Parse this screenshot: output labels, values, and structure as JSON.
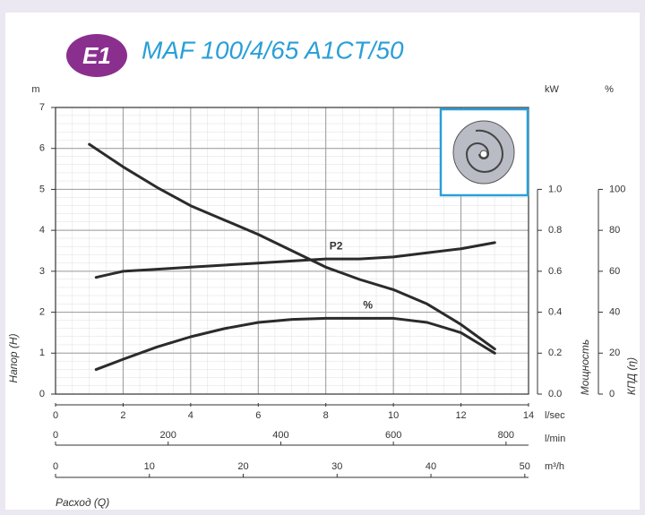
{
  "chart_data": {
    "type": "line",
    "badge": "E1",
    "title": "MAF 100/4/65 A1CT/50",
    "y_unit": "m",
    "y_label": "Напор (H)",
    "ylim": [
      0,
      7
    ],
    "yticks": [
      0,
      1,
      2,
      3,
      4,
      5,
      6,
      7
    ],
    "y2_unit": "kW",
    "y2_label": "Мощность",
    "y2lim": [
      0,
      1.4
    ],
    "y2ticks": [
      {
        "value": 0,
        "label": "0.0"
      },
      {
        "value": 0.2,
        "label": "0.2"
      },
      {
        "value": 0.4,
        "label": "0.4"
      },
      {
        "value": 0.6,
        "label": "0.6"
      },
      {
        "value": 0.8,
        "label": "0.8"
      },
      {
        "value": 1,
        "label": "1.0"
      }
    ],
    "y3_unit": "%",
    "y3_label": "КПД (η)",
    "y3lim": [
      0,
      140
    ],
    "y3ticks": [
      0,
      20,
      40,
      60,
      80,
      100
    ],
    "x_label": "Расход (Q)",
    "x_unit": "l/sec",
    "xlim": [
      0,
      14
    ],
    "xticks": [
      0,
      2,
      4,
      6,
      8,
      10,
      12,
      14
    ],
    "x2_unit": "l/min",
    "x2lim": [
      0,
      840
    ],
    "x2ticks": [
      0,
      200,
      400,
      600,
      800
    ],
    "x3_unit": "m³/h",
    "x3lim": [
      0,
      50.4
    ],
    "x3ticks": [
      0,
      10,
      20,
      30,
      40,
      50
    ],
    "grid": true,
    "series": [
      {
        "color": "#2b2b2b",
        "axis": "y",
        "x": [
          1,
          2,
          3,
          4,
          5,
          6,
          7,
          7.5,
          8,
          9,
          10,
          11,
          12,
          12.5,
          13
        ],
        "values": [
          6.1,
          5.55,
          5.05,
          4.6,
          4.25,
          3.9,
          3.5,
          3.3,
          3.1,
          2.8,
          2.55,
          2.2,
          1.7,
          1.4,
          1.1
        ]
      },
      {
        "name": "P2",
        "color": "#2b2b2b",
        "axis": "y2",
        "x": [
          1.2,
          2,
          3,
          4,
          5,
          6,
          7,
          8,
          9,
          10,
          11,
          12,
          13
        ],
        "values": [
          0.57,
          0.6,
          0.61,
          0.62,
          0.63,
          0.64,
          0.65,
          0.66,
          0.66,
          0.67,
          0.69,
          0.71,
          0.74
        ]
      },
      {
        "name": "%",
        "color": "#2b2b2b",
        "axis": "y3",
        "x": [
          1.2,
          2,
          3,
          4,
          5,
          6,
          7,
          8,
          9,
          10,
          11,
          12,
          12.5,
          13
        ],
        "values": [
          12,
          17,
          23,
          28,
          32,
          35,
          36.5,
          37,
          37,
          37,
          35,
          30,
          25,
          20
        ]
      }
    ]
  }
}
